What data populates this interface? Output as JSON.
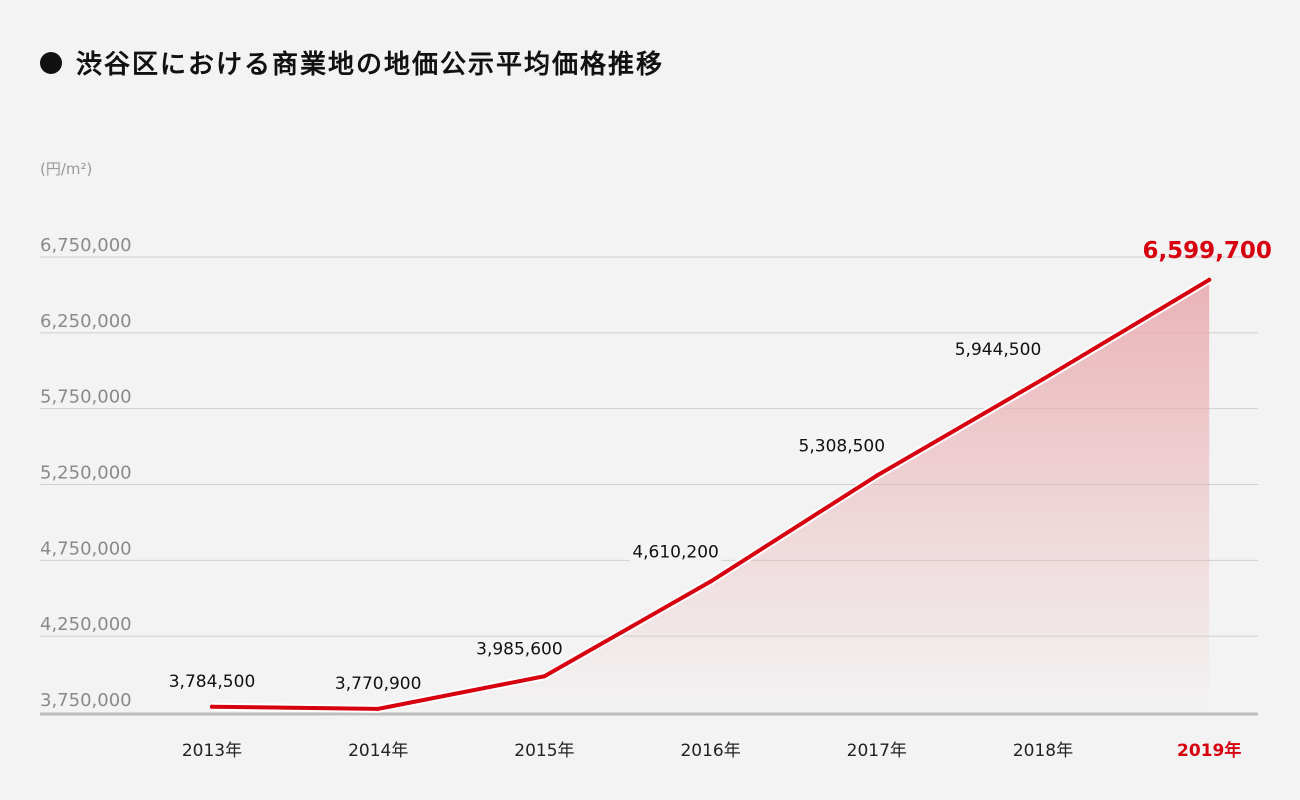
{
  "title": "渋谷区における商業地の地価公示平均価格推移",
  "chart_data": {
    "type": "area",
    "title": "渋谷区における商業地の地価公示平均価格推移",
    "unit_label": "(円/m²)",
    "categories": [
      "2013年",
      "2014年",
      "2015年",
      "2016年",
      "2017年",
      "2018年",
      "2019年"
    ],
    "values": [
      3784500,
      3770900,
      3985600,
      4610200,
      5308500,
      5944500,
      6599700
    ],
    "value_labels": [
      "3,784,500",
      "3,770,900",
      "3,985,600",
      "4,610,200",
      "5,308,500",
      "5,944,500",
      "6,599,700"
    ],
    "yticks": [
      3750000,
      4250000,
      4750000,
      5250000,
      5750000,
      6250000,
      6750000
    ],
    "ytick_labels": [
      "3,750,000",
      "4,250,000",
      "4,750,000",
      "5,250,000",
      "5,750,000",
      "6,250,000",
      "6,750,000"
    ],
    "ylim": [
      3750000,
      6750000
    ],
    "highlight_index": 6,
    "grid": true,
    "colors": {
      "line": "#d7000f",
      "fill": "#e8a8ad",
      "grid": "#cfcfcf",
      "axis": "#bdbdbd"
    }
  }
}
